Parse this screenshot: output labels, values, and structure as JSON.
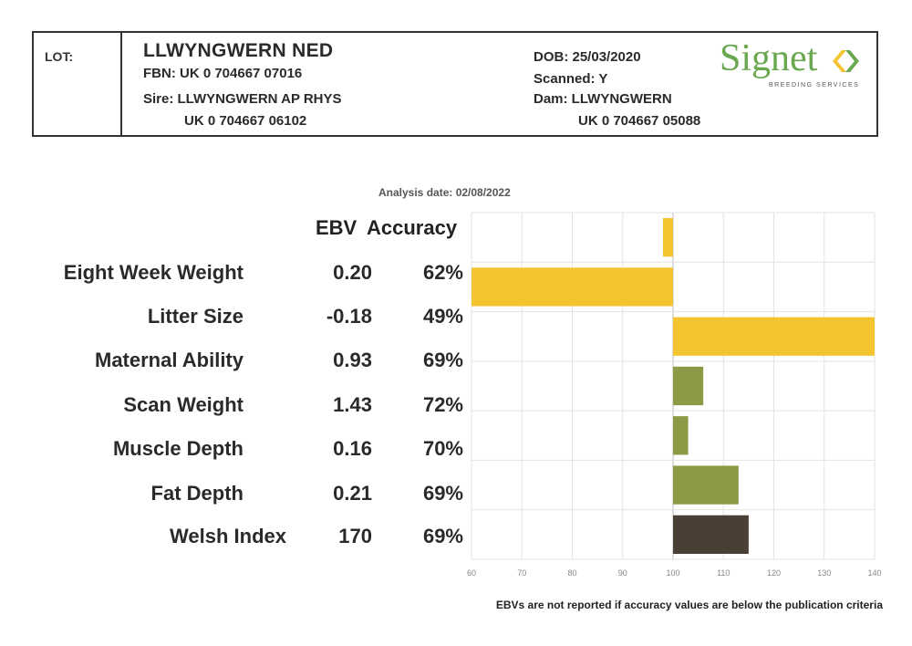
{
  "header": {
    "lot_label": "LOT:",
    "name": "LLWYNGWERN NED",
    "fbn": "FBN: UK 0 704667 07016",
    "sire": "Sire: LLWYNGWERN AP RHYS",
    "sire_id": "UK 0 704667 06102",
    "dob": "DOB: 25/03/2020",
    "scanned": "Scanned: Y",
    "dam": "Dam: LLWYNGWERN",
    "dam_id": "UK 0 704667 05088",
    "logo_word": "Signet",
    "logo_sub": "BREEDING SERVICES"
  },
  "analysis_date": "Analysis date: 02/08/2022",
  "columns": {
    "ebv": "EBV",
    "accuracy": "Accuracy"
  },
  "rows": [
    {
      "label": "Eight Week Weight",
      "ebv": "0.20",
      "accuracy": "62%"
    },
    {
      "label": "Litter Size",
      "ebv": "-0.18",
      "accuracy": "49%"
    },
    {
      "label": "Maternal Ability",
      "ebv": "0.93",
      "accuracy": "69%"
    },
    {
      "label": "Scan Weight",
      "ebv": "1.43",
      "accuracy": "72%"
    },
    {
      "label": "Muscle Depth",
      "ebv": "0.16",
      "accuracy": "70%"
    },
    {
      "label": "Fat Depth",
      "ebv": "0.21",
      "accuracy": "69%"
    },
    {
      "label": "Welsh Index",
      "ebv": "170",
      "accuracy": "69%"
    }
  ],
  "footnote": "EBVs are not reported if accuracy values are below the publication criteria",
  "colors": {
    "maternal": "#f4c430",
    "terminal": "#8a9a45",
    "index": "#4a3f35",
    "logo": "#6aa84f"
  },
  "chart_data": {
    "type": "bar",
    "orientation": "horizontal",
    "baseline": 100,
    "xlim": [
      60,
      140
    ],
    "xticks": [
      "60",
      "70",
      "80",
      "90",
      "100",
      "110",
      "120",
      "130",
      "140"
    ],
    "categories": [
      "Eight Week Weight",
      "Litter Size",
      "Maternal Ability",
      "Scan Weight",
      "Muscle Depth",
      "Fat Depth",
      "Welsh Index"
    ],
    "values": [
      98,
      60,
      140,
      106,
      103,
      113,
      115
    ],
    "bar_colors": [
      "#f4c430",
      "#f4c430",
      "#f4c430",
      "#8a9a45",
      "#8a9a45",
      "#8a9a45",
      "#4a3f35"
    ],
    "grid": true
  }
}
